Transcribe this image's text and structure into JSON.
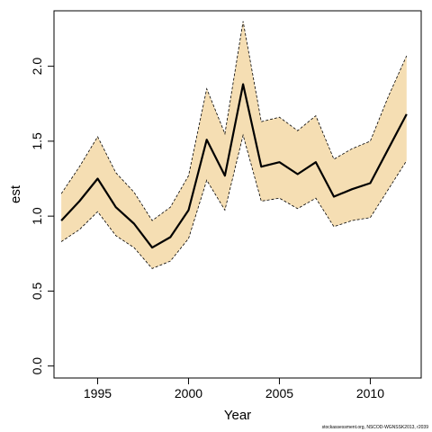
{
  "chart_data": {
    "type": "line",
    "xlabel": "Year",
    "ylabel": "est",
    "xlim": [
      1992.6,
      2012.8
    ],
    "ylim": [
      -0.08,
      2.37
    ],
    "x_ticks": [
      1995,
      2000,
      2005,
      2010
    ],
    "y_ticks": [
      0.0,
      0.5,
      1.0,
      1.5,
      2.0
    ],
    "y_tick_labels": [
      "0.0",
      "0.5",
      "1.0",
      "1.5",
      "2.0"
    ],
    "x": [
      1993,
      1994,
      1995,
      1996,
      1997,
      1998,
      1999,
      2000,
      2001,
      2002,
      2003,
      2004,
      2005,
      2006,
      2007,
      2008,
      2009,
      2010,
      2011,
      2012
    ],
    "series": [
      {
        "role": "estimate",
        "values": [
          0.97,
          1.1,
          1.25,
          1.06,
          0.95,
          0.79,
          0.86,
          1.04,
          1.51,
          1.27,
          1.88,
          1.33,
          1.36,
          1.28,
          1.36,
          1.13,
          1.18,
          1.22,
          1.45,
          1.68
        ]
      },
      {
        "role": "upper",
        "values": [
          1.15,
          1.33,
          1.53,
          1.29,
          1.16,
          0.97,
          1.06,
          1.27,
          1.85,
          1.55,
          2.3,
          1.63,
          1.66,
          1.57,
          1.67,
          1.38,
          1.45,
          1.5,
          1.8,
          2.07
        ]
      },
      {
        "role": "lower",
        "values": [
          0.83,
          0.91,
          1.03,
          0.87,
          0.79,
          0.65,
          0.7,
          0.85,
          1.24,
          1.04,
          1.54,
          1.1,
          1.12,
          1.05,
          1.12,
          0.93,
          0.97,
          0.99,
          1.18,
          1.37
        ]
      }
    ],
    "colors": {
      "band": "#f5deb3",
      "line": "#000000",
      "bounds": "#000000"
    },
    "grid": false,
    "legend": "none"
  },
  "footer": {
    "source": "stockassessment.org, NSCOD-WGNSSK2013, r2039"
  }
}
